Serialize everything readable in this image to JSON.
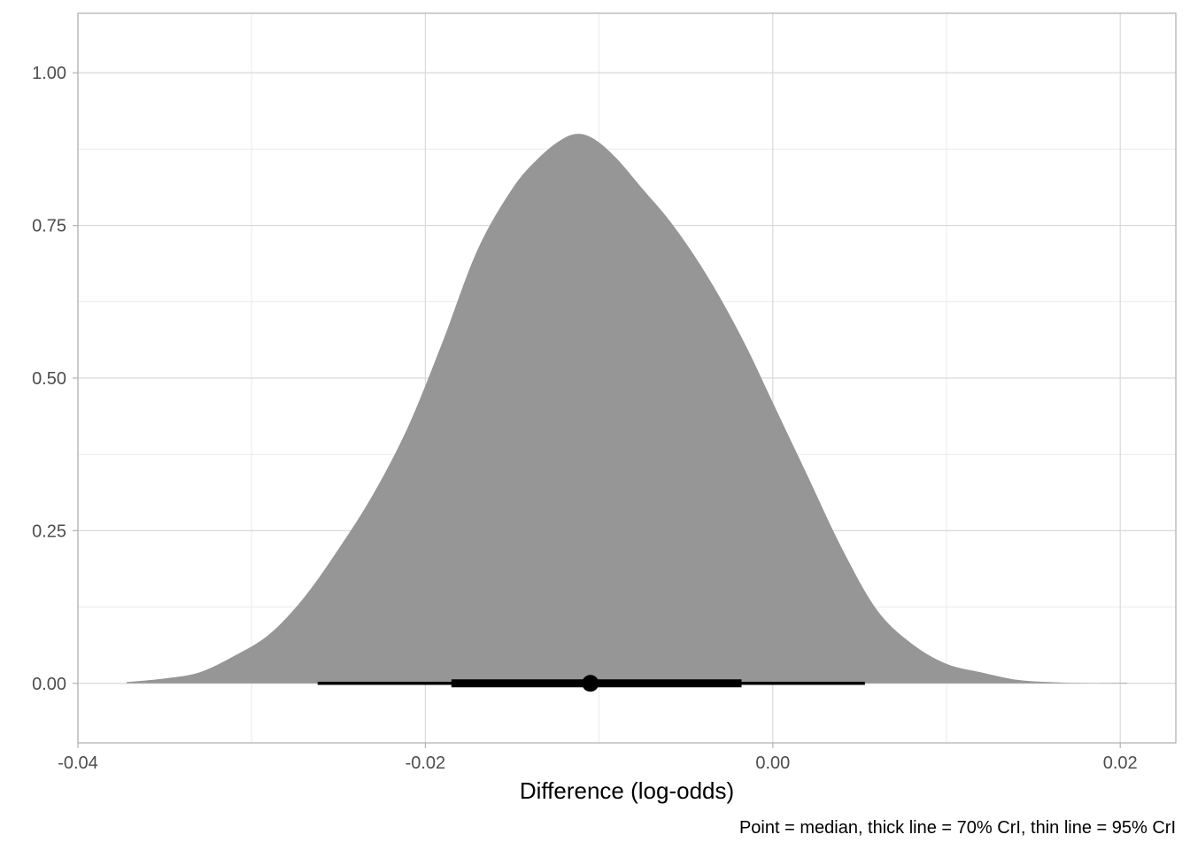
{
  "chart_data": {
    "type": "area",
    "title": "",
    "xlabel": "Difference (log-odds)",
    "ylabel": "",
    "caption": "Point = median, thick line = 70% CrI, thin line = 95% CrI",
    "xlim": [
      -0.04,
      0.0232
    ],
    "ylim": [
      -0.0975,
      1.0975
    ],
    "x_ticks": [
      -0.04,
      -0.02,
      0.0,
      0.02
    ],
    "x_tick_labels": [
      "-0.04",
      "-0.02",
      "0.00",
      "0.02"
    ],
    "y_ticks": [
      0.0,
      0.25,
      0.5,
      0.75,
      1.0
    ],
    "y_tick_labels": [
      "0.00",
      "0.25",
      "0.50",
      "0.75",
      "1.00"
    ],
    "grid": true,
    "density_fill_color": "#969696",
    "density": {
      "x": [
        -0.0372,
        -0.035,
        -0.033,
        -0.031,
        -0.029,
        -0.027,
        -0.025,
        -0.023,
        -0.021,
        -0.019,
        -0.017,
        -0.015,
        -0.0135,
        -0.0122,
        -0.0112,
        -0.0102,
        -0.009,
        -0.0075,
        -0.006,
        -0.0045,
        -0.003,
        -0.0015,
        0.0,
        0.002,
        0.004,
        0.006,
        0.008,
        0.01,
        0.012,
        0.014,
        0.016,
        0.018,
        0.0204
      ],
      "y": [
        0.002,
        0.008,
        0.018,
        0.045,
        0.08,
        0.14,
        0.22,
        0.31,
        0.42,
        0.56,
        0.71,
        0.81,
        0.86,
        0.89,
        0.9,
        0.89,
        0.86,
        0.81,
        0.76,
        0.7,
        0.63,
        0.55,
        0.46,
        0.34,
        0.22,
        0.12,
        0.065,
        0.032,
        0.018,
        0.006,
        0.002,
        0.0005,
        0.001
      ]
    },
    "interval_color": "#000000",
    "median": -0.0105,
    "ci70": [
      -0.0185,
      -0.0018
    ],
    "ci95": [
      -0.0262,
      0.0053
    ]
  }
}
